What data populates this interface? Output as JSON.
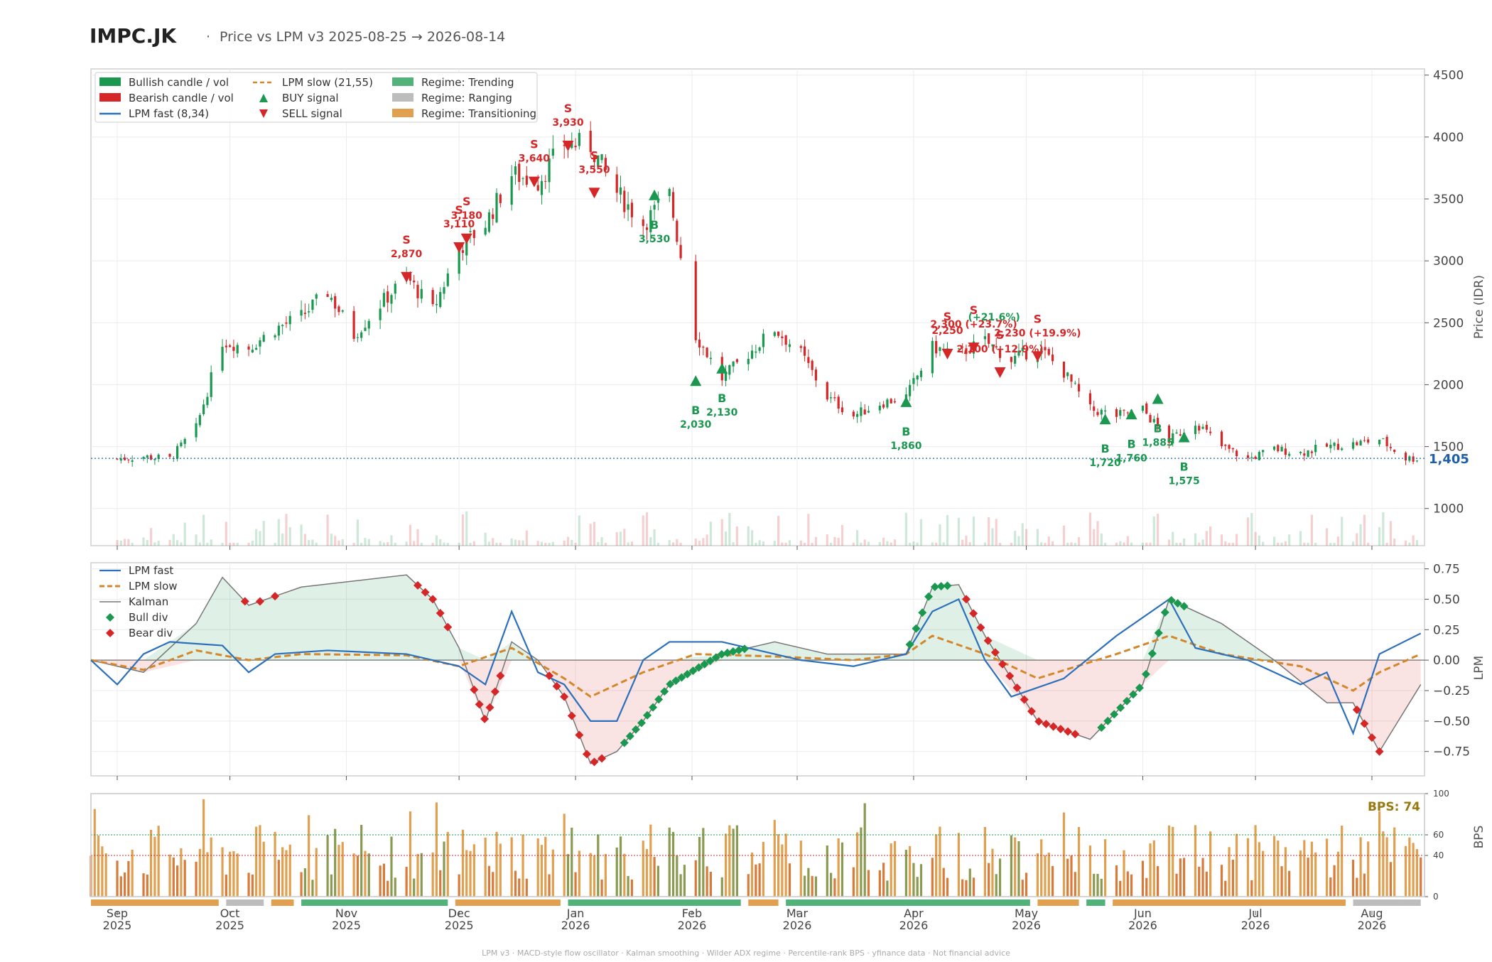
{
  "header": {
    "ticker": "IMPC.JK",
    "separator": "·",
    "subtitle": "Price vs LPM v3  2025-08-25 → 2026-08-14"
  },
  "colors": {
    "bull": "#1a9850",
    "bear": "#d62728",
    "lpm_fast": "#2c6fbb",
    "lpm_slow": "#d4872a",
    "kalman": "#777777",
    "regime_trending": "#52b27a",
    "regime_ranging": "#bdbdbd",
    "regime_transitioning": "#e0a050",
    "last_price": "#1f5fa8",
    "bps_label": "#9a7a10"
  },
  "chart_data": [
    {
      "id": "price",
      "type": "candlestick",
      "ylabel": "Price (IDR)",
      "ylim": [
        700,
        4550
      ],
      "yticks": [
        "1000",
        "1500",
        "2000",
        "2500",
        "3000",
        "3500",
        "4000",
        "4500"
      ],
      "x_start": "2025-08-25",
      "x_end": "2026-08-14",
      "last_price": 1405,
      "last_price_label": "1,405",
      "legend": {
        "position": "top-left",
        "entries": [
          "Bullish candle / vol",
          "Bearish candle / vol",
          "LPM fast (8,34)",
          "LPM slow (21,55)",
          "BUY signal",
          "SELL signal",
          "Regime: Trending",
          "Regime: Ranging",
          "Regime: Transitioning"
        ]
      },
      "close_path": [
        [
          "2025-09-01",
          1400
        ],
        [
          "2025-09-08",
          1420
        ],
        [
          "2025-09-15",
          1400
        ],
        [
          "2025-09-22",
          1650
        ],
        [
          "2025-09-29",
          2350
        ],
        [
          "2025-10-06",
          2300
        ],
        [
          "2025-10-13",
          2450
        ],
        [
          "2025-10-20",
          2550
        ],
        [
          "2025-10-27",
          2750
        ],
        [
          "2025-11-03",
          2400
        ],
        [
          "2025-11-10",
          2650
        ],
        [
          "2025-11-17",
          2870
        ],
        [
          "2025-11-24",
          2600
        ],
        [
          "2025-12-01",
          3100
        ],
        [
          "2025-12-08",
          3300
        ],
        [
          "2025-12-15",
          3700
        ],
        [
          "2025-12-22",
          3640
        ],
        [
          "2025-12-29",
          3950
        ],
        [
          "2026-01-05",
          3930
        ],
        [
          "2026-01-12",
          3550
        ],
        [
          "2026-01-19",
          3300
        ],
        [
          "2026-01-26",
          3530
        ],
        [
          "2026-02-02",
          2400
        ],
        [
          "2026-02-09",
          2050
        ],
        [
          "2026-02-16",
          2250
        ],
        [
          "2026-02-23",
          2450
        ],
        [
          "2026-03-02",
          2250
        ],
        [
          "2026-03-09",
          1900
        ],
        [
          "2026-03-16",
          1750
        ],
        [
          "2026-03-23",
          1850
        ],
        [
          "2026-03-30",
          1900
        ],
        [
          "2026-04-06",
          2300
        ],
        [
          "2026-04-13",
          2250
        ],
        [
          "2026-04-20",
          2350
        ],
        [
          "2026-04-27",
          2200
        ],
        [
          "2026-05-04",
          2300
        ],
        [
          "2026-05-11",
          2100
        ],
        [
          "2026-05-18",
          1800
        ],
        [
          "2026-05-25",
          1750
        ],
        [
          "2026-06-01",
          1800
        ],
        [
          "2026-06-08",
          1550
        ],
        [
          "2026-06-15",
          1700
        ],
        [
          "2026-06-22",
          1500
        ],
        [
          "2026-06-29",
          1400
        ],
        [
          "2026-07-06",
          1480
        ],
        [
          "2026-07-13",
          1450
        ],
        [
          "2026-07-20",
          1500
        ],
        [
          "2026-07-27",
          1520
        ],
        [
          "2026-08-03",
          1560
        ],
        [
          "2026-08-10",
          1405
        ]
      ],
      "signals": [
        {
          "type": "sell",
          "date": "2025-11-17",
          "price": 2870,
          "label": "2,870"
        },
        {
          "type": "sell",
          "date": "2025-12-01",
          "price": 3110,
          "label": "3,110"
        },
        {
          "type": "sell",
          "date": "2025-12-03",
          "price": 3180,
          "label": "3,180"
        },
        {
          "type": "sell",
          "date": "2025-12-21",
          "price": 3640,
          "label": "3,640"
        },
        {
          "type": "sell",
          "date": "2025-12-30",
          "price": 3930,
          "label": "3,930"
        },
        {
          "type": "sell",
          "date": "2026-01-06",
          "price": 3550,
          "label": "3,550"
        },
        {
          "type": "buy",
          "date": "2026-01-22",
          "price": 3530,
          "label": "3,530"
        },
        {
          "type": "buy",
          "date": "2026-02-02",
          "price": 2030,
          "label": "2,030"
        },
        {
          "type": "buy",
          "date": "2026-02-09",
          "price": 2130,
          "label": "2,130"
        },
        {
          "type": "buy",
          "date": "2026-03-30",
          "price": 1860,
          "label": "1,860"
        },
        {
          "type": "sell",
          "date": "2026-04-10",
          "price": 2250,
          "label": "2,250"
        },
        {
          "type": "sell",
          "date": "2026-04-17",
          "price": 2300,
          "label": "2,300 (+23.7%)"
        },
        {
          "type": "sell",
          "date": "2026-04-24",
          "price": 2100,
          "label": "2,100 (+12.9%)"
        },
        {
          "type": "sell",
          "date": "2026-05-04",
          "price": 2230,
          "label": "2,230 (+19.9%)"
        },
        {
          "type": "buy",
          "date": "2026-05-22",
          "price": 1720,
          "label": "1,720"
        },
        {
          "type": "buy",
          "date": "2026-05-29",
          "price": 1760,
          "label": "1,760"
        },
        {
          "type": "buy",
          "date": "2026-06-05",
          "price": 1885,
          "label": "1,885"
        },
        {
          "type": "buy",
          "date": "2026-06-12",
          "price": 1575,
          "label": "1,575"
        }
      ],
      "extra_annotations": [
        "(+21.6%)"
      ]
    },
    {
      "id": "lpm",
      "type": "line",
      "ylabel": "LPM",
      "ylim": [
        -0.95,
        0.8
      ],
      "yticks": [
        "0.75",
        "0.50",
        "0.25",
        "0.00",
        "−0.25",
        "−0.50",
        "−0.75"
      ],
      "legend": {
        "position": "top-left",
        "entries": [
          "LPM fast",
          "LPM slow",
          "Kalman",
          "Bull div",
          "Bear div"
        ]
      },
      "series": [
        {
          "name": "LPM fast",
          "points": [
            [
              "2025-08-25",
              0.0
            ],
            [
              "2025-09-01",
              -0.2
            ],
            [
              "2025-09-08",
              0.05
            ],
            [
              "2025-09-15",
              0.15
            ],
            [
              "2025-09-29",
              0.12
            ],
            [
              "2025-10-06",
              -0.1
            ],
            [
              "2025-10-13",
              0.05
            ],
            [
              "2025-10-27",
              0.08
            ],
            [
              "2025-11-17",
              0.05
            ],
            [
              "2025-11-24",
              0.0
            ],
            [
              "2025-12-01",
              -0.05
            ],
            [
              "2025-12-08",
              -0.2
            ],
            [
              "2025-12-15",
              0.4
            ],
            [
              "2025-12-22",
              -0.1
            ],
            [
              "2025-12-29",
              -0.2
            ],
            [
              "2026-01-05",
              -0.5
            ],
            [
              "2026-01-12",
              -0.5
            ],
            [
              "2026-01-19",
              0.0
            ],
            [
              "2026-01-26",
              0.15
            ],
            [
              "2026-02-09",
              0.15
            ],
            [
              "2026-02-23",
              0.05
            ],
            [
              "2026-03-02",
              0.0
            ],
            [
              "2026-03-16",
              -0.05
            ],
            [
              "2026-03-30",
              0.05
            ],
            [
              "2026-04-06",
              0.4
            ],
            [
              "2026-04-13",
              0.5
            ],
            [
              "2026-04-20",
              0.0
            ],
            [
              "2026-04-27",
              -0.3
            ],
            [
              "2026-05-11",
              -0.15
            ],
            [
              "2026-05-25",
              0.2
            ],
            [
              "2026-06-08",
              0.5
            ],
            [
              "2026-06-15",
              0.1
            ],
            [
              "2026-06-29",
              0.0
            ],
            [
              "2026-07-06",
              -0.1
            ],
            [
              "2026-07-13",
              -0.2
            ],
            [
              "2026-07-20",
              -0.1
            ],
            [
              "2026-07-27",
              -0.6
            ],
            [
              "2026-08-03",
              0.05
            ],
            [
              "2026-08-14",
              0.22
            ]
          ]
        },
        {
          "name": "LPM slow",
          "points": [
            [
              "2025-08-25",
              0.0
            ],
            [
              "2025-09-08",
              -0.08
            ],
            [
              "2025-09-22",
              0.08
            ],
            [
              "2025-10-06",
              0.0
            ],
            [
              "2025-10-20",
              0.05
            ],
            [
              "2025-11-17",
              0.04
            ],
            [
              "2025-12-01",
              -0.05
            ],
            [
              "2025-12-15",
              0.1
            ],
            [
              "2025-12-29",
              -0.15
            ],
            [
              "2026-01-05",
              -0.3
            ],
            [
              "2026-01-19",
              -0.1
            ],
            [
              "2026-02-02",
              0.05
            ],
            [
              "2026-02-23",
              0.03
            ],
            [
              "2026-03-16",
              0.0
            ],
            [
              "2026-03-30",
              0.05
            ],
            [
              "2026-04-06",
              0.2
            ],
            [
              "2026-04-20",
              0.05
            ],
            [
              "2026-05-04",
              -0.15
            ],
            [
              "2026-05-25",
              0.05
            ],
            [
              "2026-06-08",
              0.2
            ],
            [
              "2026-06-22",
              0.05
            ],
            [
              "2026-07-13",
              -0.05
            ],
            [
              "2026-07-27",
              -0.25
            ],
            [
              "2026-08-03",
              -0.1
            ],
            [
              "2026-08-14",
              0.05
            ]
          ]
        },
        {
          "name": "Kalman",
          "points": [
            [
              "2025-08-25",
              0.0
            ],
            [
              "2025-09-08",
              -0.1
            ],
            [
              "2025-09-22",
              0.3
            ],
            [
              "2025-09-29",
              0.68
            ],
            [
              "2025-10-06",
              0.45
            ],
            [
              "2025-10-20",
              0.6
            ],
            [
              "2025-11-03",
              0.65
            ],
            [
              "2025-11-17",
              0.7
            ],
            [
              "2025-11-24",
              0.5
            ],
            [
              "2025-12-01",
              0.1
            ],
            [
              "2025-12-08",
              -0.5
            ],
            [
              "2025-12-15",
              0.15
            ],
            [
              "2025-12-22",
              0.0
            ],
            [
              "2025-12-29",
              -0.3
            ],
            [
              "2026-01-05",
              -0.85
            ],
            [
              "2026-01-12",
              -0.75
            ],
            [
              "2026-01-19",
              -0.5
            ],
            [
              "2026-01-26",
              -0.2
            ],
            [
              "2026-02-09",
              0.05
            ],
            [
              "2026-02-23",
              0.15
            ],
            [
              "2026-03-09",
              0.05
            ],
            [
              "2026-03-30",
              0.05
            ],
            [
              "2026-04-06",
              0.6
            ],
            [
              "2026-04-13",
              0.62
            ],
            [
              "2026-04-20",
              0.2
            ],
            [
              "2026-05-04",
              -0.5
            ],
            [
              "2026-05-18",
              -0.65
            ],
            [
              "2026-06-01",
              -0.2
            ],
            [
              "2026-06-08",
              0.5
            ],
            [
              "2026-06-22",
              0.3
            ],
            [
              "2026-07-06",
              0.0
            ],
            [
              "2026-07-20",
              -0.35
            ],
            [
              "2026-07-27",
              -0.35
            ],
            [
              "2026-08-03",
              -0.75
            ],
            [
              "2026-08-14",
              -0.2
            ]
          ]
        }
      ]
    },
    {
      "id": "bps",
      "type": "bar",
      "ylabel": "BPS",
      "ylim": [
        0,
        100
      ],
      "yticks": [
        "0",
        "40",
        "60",
        "100"
      ],
      "reference_lines": [
        40,
        60
      ],
      "last_value_label": "BPS: 74",
      "regimes": [
        {
          "start": "2025-08-25",
          "end": "2025-09-28",
          "regime": "Transitioning"
        },
        {
          "start": "2025-09-30",
          "end": "2025-10-10",
          "regime": "Ranging"
        },
        {
          "start": "2025-10-12",
          "end": "2025-10-18",
          "regime": "Transitioning"
        },
        {
          "start": "2025-10-20",
          "end": "2025-11-28",
          "regime": "Trending"
        },
        {
          "start": "2025-11-30",
          "end": "2025-12-28",
          "regime": "Transitioning"
        },
        {
          "start": "2025-12-30",
          "end": "2026-02-14",
          "regime": "Trending"
        },
        {
          "start": "2026-02-16",
          "end": "2026-02-24",
          "regime": "Transitioning"
        },
        {
          "start": "2026-02-26",
          "end": "2026-05-02",
          "regime": "Trending"
        },
        {
          "start": "2026-05-04",
          "end": "2026-05-15",
          "regime": "Transitioning"
        },
        {
          "start": "2026-05-17",
          "end": "2026-05-22",
          "regime": "Trending"
        },
        {
          "start": "2026-05-24",
          "end": "2026-07-25",
          "regime": "Transitioning"
        },
        {
          "start": "2026-07-27",
          "end": "2026-08-14",
          "regime": "Ranging"
        }
      ]
    }
  ],
  "x_axis": {
    "ticks": [
      {
        "date": "2025-09-01",
        "month": "Sep",
        "year": "2025"
      },
      {
        "date": "2025-10-01",
        "month": "Oct",
        "year": "2025"
      },
      {
        "date": "2025-11-01",
        "month": "Nov",
        "year": "2025"
      },
      {
        "date": "2025-12-01",
        "month": "Dec",
        "year": "2025"
      },
      {
        "date": "2026-01-01",
        "month": "Jan",
        "year": "2026"
      },
      {
        "date": "2026-02-01",
        "month": "Feb",
        "year": "2026"
      },
      {
        "date": "2026-03-01",
        "month": "Mar",
        "year": "2026"
      },
      {
        "date": "2026-04-01",
        "month": "Apr",
        "year": "2026"
      },
      {
        "date": "2026-05-01",
        "month": "May",
        "year": "2026"
      },
      {
        "date": "2026-06-01",
        "month": "Jun",
        "year": "2026"
      },
      {
        "date": "2026-07-01",
        "month": "Jul",
        "year": "2026"
      },
      {
        "date": "2026-08-01",
        "month": "Aug",
        "year": "2026"
      }
    ]
  },
  "footer": "LPM v3  ·  MACD-style flow oscillator  ·  Kalman smoothing  ·  Wilder ADX regime  ·  Percentile-rank BPS  ·  yfinance data  ·  Not financial advice"
}
